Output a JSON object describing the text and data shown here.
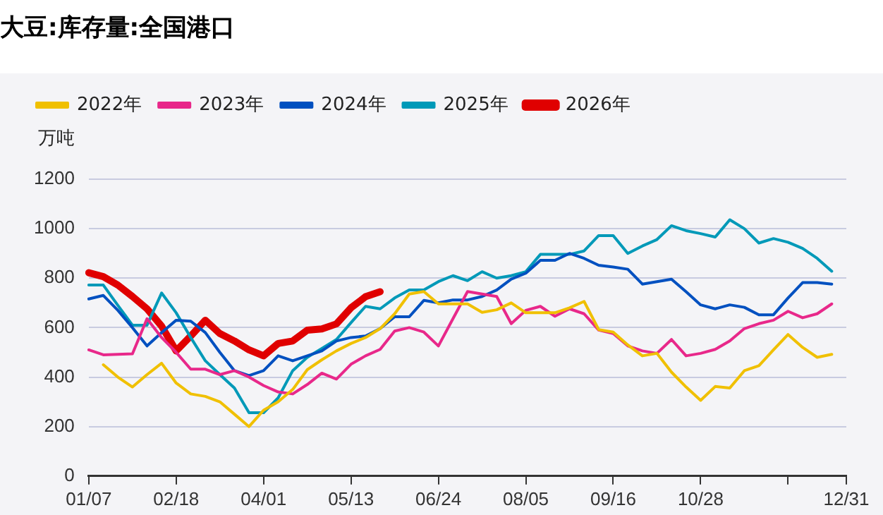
{
  "chart_data": {
    "type": "line",
    "title": "大豆:库存量:全国港口",
    "ylabel": "万吨",
    "categories": [
      "01/07",
      null,
      null,
      null,
      null,
      null,
      "02/18",
      null,
      null,
      null,
      null,
      null,
      "04/01",
      null,
      null,
      null,
      null,
      null,
      "05/13",
      null,
      null,
      null,
      null,
      null,
      "06/24",
      null,
      null,
      null,
      null,
      null,
      "08/05",
      null,
      null,
      null,
      null,
      null,
      "09/16",
      null,
      null,
      null,
      null,
      null,
      "10/28",
      null,
      null,
      null,
      null,
      null,
      null,
      null,
      null,
      null,
      "12/31"
    ],
    "series": [
      {
        "name": "2022年",
        "color": "#f0c000",
        "values": [
          null,
          450,
          400,
          360,
          410,
          456,
          376,
          332,
          322,
          300,
          250,
          200,
          266,
          300,
          350,
          430,
          470,
          506,
          536,
          560,
          596,
          656,
          736,
          746,
          696,
          696,
          696,
          662,
          672,
          700,
          660,
          660,
          660,
          680,
          706,
          592,
          582,
          530,
          486,
          496,
          420,
          360,
          306,
          362,
          356,
          426,
          446,
          510,
          572,
          520,
          480,
          492,
          null
        ]
      },
      {
        "name": "2023年",
        "color": "#e8288a",
        "values": [
          510,
          490,
          492,
          494,
          636,
          560,
          500,
          432,
          432,
          410,
          426,
          400,
          366,
          340,
          332,
          370,
          416,
          392,
          452,
          486,
          512,
          586,
          600,
          582,
          526,
          636,
          746,
          736,
          726,
          616,
          670,
          686,
          646,
          676,
          656,
          590,
          576,
          526,
          506,
          496,
          552,
          486,
          496,
          512,
          546,
          596,
          616,
          630,
          666,
          640,
          656,
          696,
          null
        ]
      },
      {
        "name": "2024年",
        "color": "#0050c0",
        "values": [
          716,
          730,
          670,
          600,
          526,
          580,
          630,
          626,
          580,
          500,
          426,
          406,
          426,
          486,
          466,
          486,
          506,
          546,
          560,
          566,
          596,
          644,
          644,
          710,
          700,
          712,
          712,
          726,
          752,
          796,
          820,
          872,
          872,
          900,
          880,
          852,
          845,
          836,
          776,
          786,
          796,
          745,
          692,
          676,
          692,
          682,
          652,
          652,
          720,
          782,
          782,
          776,
          null
        ]
      },
      {
        "name": "2025年",
        "color": "#0099b8",
        "values": [
          772,
          772,
          690,
          610,
          610,
          740,
          660,
          560,
          466,
          410,
          356,
          256,
          256,
          316,
          426,
          480,
          516,
          552,
          620,
          686,
          676,
          720,
          752,
          752,
          786,
          810,
          790,
          826,
          800,
          810,
          826,
          896,
          896,
          896,
          910,
          972,
          972,
          900,
          930,
          956,
          1012,
          992,
          980,
          966,
          1036,
          1000,
          942,
          960,
          945,
          920,
          880,
          828,
          null
        ]
      },
      {
        "name": "2026年",
        "color": "#e00000",
        "values": [
          822,
          806,
          772,
          726,
          676,
          606,
          506,
          566,
          630,
          576,
          546,
          510,
          486,
          536,
          546,
          590,
          595,
          615,
          680,
          725,
          745,
          null,
          null,
          null,
          null,
          null,
          null,
          null,
          null,
          null,
          null,
          null,
          null,
          null,
          null,
          null,
          null,
          null,
          null,
          null,
          null,
          null,
          null,
          null,
          null,
          null,
          null,
          null,
          null,
          null,
          null,
          null,
          null
        ]
      }
    ],
    "ylim": [
      0,
      1200
    ],
    "yticks": [
      0,
      200,
      400,
      600,
      800,
      1000,
      1200
    ],
    "grid": "y",
    "legend": "top left",
    "marker": "none",
    "line_style": "solid"
  }
}
